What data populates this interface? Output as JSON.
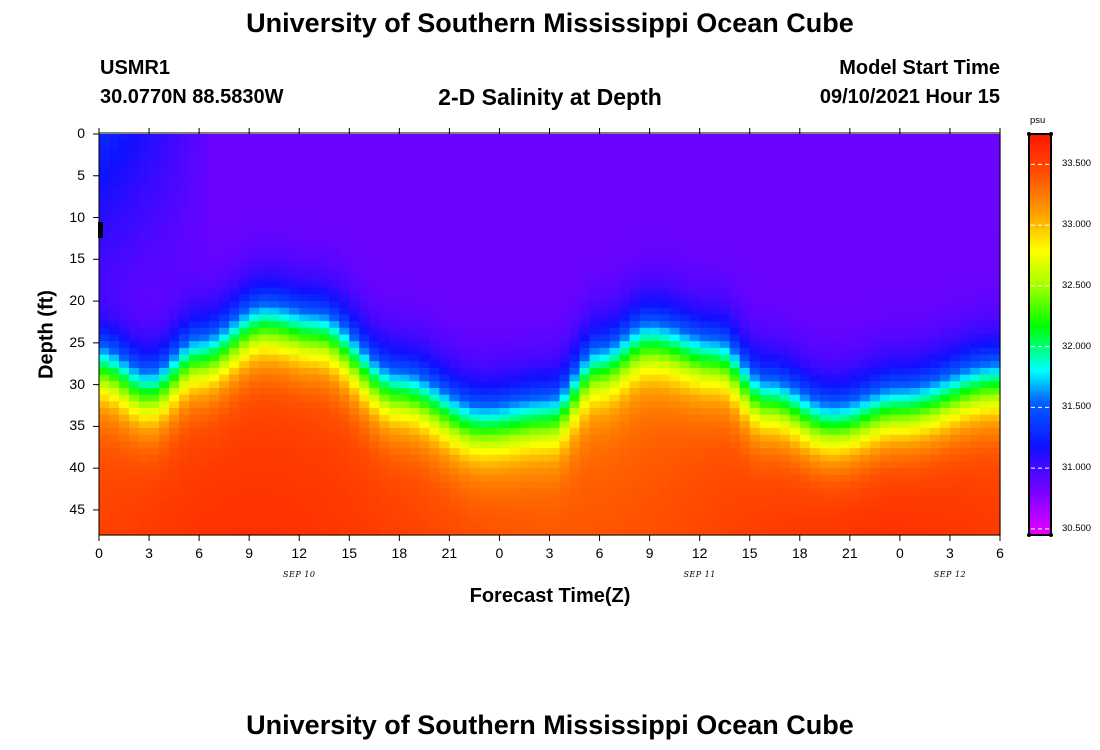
{
  "header": {
    "top_title": "University of Southern Mississippi Ocean Cube",
    "station_id": "USMR1",
    "station_coords": "30.0770N  88.5830W",
    "plot_title": "2-D Salinity at Depth",
    "model_label": "Model Start Time",
    "model_time": "09/10/2021 Hour 15",
    "bottom_title": "University of Southern Mississippi Ocean Cube"
  },
  "chart_data": {
    "type": "heatmap",
    "title": "2-D Salinity at Depth",
    "xlabel": "Forecast Time(Z)",
    "ylabel": "Depth (ft)",
    "x_tick_labels": [
      "0",
      "3",
      "6",
      "9",
      "12",
      "15",
      "18",
      "21",
      "0",
      "3",
      "6",
      "9",
      "12",
      "15",
      "18",
      "21",
      "0",
      "3",
      "6"
    ],
    "x_ticks_hours": [
      0,
      3,
      6,
      9,
      12,
      15,
      18,
      21,
      24,
      27,
      30,
      33,
      36,
      39,
      42,
      45,
      48,
      51,
      54
    ],
    "x_date_labels": [
      {
        "label": "SEP 10",
        "hour": 12
      },
      {
        "label": "SEP 11",
        "hour": 36
      },
      {
        "label": "SEP 12",
        "hour": 51
      }
    ],
    "xlim_hours": [
      0,
      54
    ],
    "y_tick_labels": [
      "0",
      "5",
      "10",
      "15",
      "20",
      "25",
      "30",
      "35",
      "40",
      "45"
    ],
    "y_ticks": [
      0,
      5,
      10,
      15,
      20,
      25,
      30,
      35,
      40,
      45
    ],
    "ylim": [
      0,
      48
    ],
    "y_inverted": true,
    "colorbar": {
      "unit": "psu",
      "min": 30.45,
      "max": 33.75,
      "tick_labels": [
        "33.500",
        "33.000",
        "32.500",
        "32.000",
        "31.500",
        "31.000",
        "30.500"
      ],
      "tick_values": [
        33.5,
        33.0,
        32.5,
        32.0,
        31.5,
        31.0,
        30.5
      ]
    },
    "halocline_center_depth_ft": [
      {
        "hour": 0,
        "depth": 28
      },
      {
        "hour": 3,
        "depth": 31
      },
      {
        "hour": 6,
        "depth": 27
      },
      {
        "hour": 10,
        "depth": 23
      },
      {
        "hour": 13,
        "depth": 24
      },
      {
        "hour": 18,
        "depth": 31
      },
      {
        "hour": 23,
        "depth": 35
      },
      {
        "hour": 27,
        "depth": 34
      },
      {
        "hour": 30,
        "depth": 28
      },
      {
        "hour": 33,
        "depth": 25
      },
      {
        "hour": 37,
        "depth": 27
      },
      {
        "hour": 40,
        "depth": 32
      },
      {
        "hour": 44,
        "depth": 35
      },
      {
        "hour": 48,
        "depth": 33
      },
      {
        "hour": 54,
        "depth": 30
      }
    ],
    "surface_min_salinity": 30.5,
    "bottom_max_salinity": 33.6
  }
}
